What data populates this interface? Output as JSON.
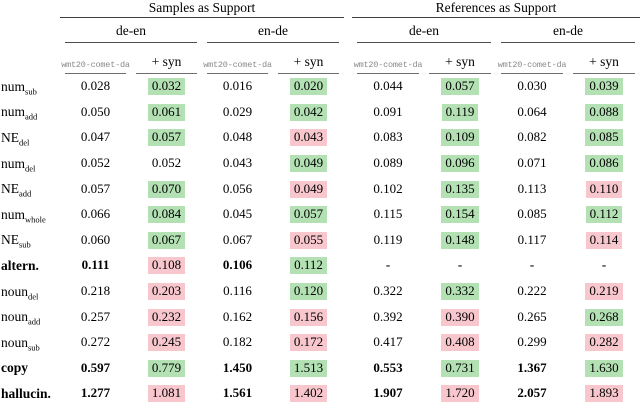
{
  "table": {
    "groups": [
      "Samples as Support",
      "References as Support"
    ],
    "lang_headers": [
      "de-en",
      "en-de",
      "de-en",
      "en-de"
    ],
    "col_headers": {
      "metric": "wmt20-comet-da",
      "syn": "+ syn"
    },
    "colors": {
      "improve_green": "#b4e1b4",
      "degrade_pink": "#f8c7cd",
      "metric_gray": "#8a8a8a"
    },
    "rows": [
      {
        "label": "num",
        "subscript": "sub",
        "bold": false,
        "values": [
          {
            "v": "0.028"
          },
          {
            "v": "0.032",
            "hl": "green"
          },
          {
            "v": "0.016"
          },
          {
            "v": "0.020",
            "hl": "green"
          },
          {
            "v": "0.044"
          },
          {
            "v": "0.057",
            "hl": "green"
          },
          {
            "v": "0.030"
          },
          {
            "v": "0.039",
            "hl": "green"
          }
        ]
      },
      {
        "label": "num",
        "subscript": "add",
        "bold": false,
        "values": [
          {
            "v": "0.050"
          },
          {
            "v": "0.061",
            "hl": "green"
          },
          {
            "v": "0.029"
          },
          {
            "v": "0.042",
            "hl": "green"
          },
          {
            "v": "0.091"
          },
          {
            "v": "0.119",
            "hl": "green"
          },
          {
            "v": "0.064"
          },
          {
            "v": "0.088",
            "hl": "green"
          }
        ]
      },
      {
        "label": "NE",
        "subscript": "del",
        "bold": false,
        "values": [
          {
            "v": "0.047"
          },
          {
            "v": "0.057",
            "hl": "green"
          },
          {
            "v": "0.048"
          },
          {
            "v": "0.043",
            "hl": "pink"
          },
          {
            "v": "0.083"
          },
          {
            "v": "0.109",
            "hl": "green"
          },
          {
            "v": "0.082"
          },
          {
            "v": "0.085",
            "hl": "green"
          }
        ]
      },
      {
        "label": "num",
        "subscript": "del",
        "bold": false,
        "values": [
          {
            "v": "0.052"
          },
          {
            "v": "0.052"
          },
          {
            "v": "0.043"
          },
          {
            "v": "0.049",
            "hl": "green"
          },
          {
            "v": "0.089"
          },
          {
            "v": "0.096",
            "hl": "green"
          },
          {
            "v": "0.071"
          },
          {
            "v": "0.086",
            "hl": "green"
          }
        ]
      },
      {
        "label": "NE",
        "subscript": "add",
        "bold": false,
        "values": [
          {
            "v": "0.057"
          },
          {
            "v": "0.070",
            "hl": "green"
          },
          {
            "v": "0.056"
          },
          {
            "v": "0.049",
            "hl": "pink"
          },
          {
            "v": "0.102"
          },
          {
            "v": "0.135",
            "hl": "green"
          },
          {
            "v": "0.113"
          },
          {
            "v": "0.110",
            "hl": "pink"
          }
        ]
      },
      {
        "label": "num",
        "subscript": "whole",
        "bold": false,
        "values": [
          {
            "v": "0.066"
          },
          {
            "v": "0.084",
            "hl": "green"
          },
          {
            "v": "0.045"
          },
          {
            "v": "0.057",
            "hl": "green"
          },
          {
            "v": "0.115"
          },
          {
            "v": "0.154",
            "hl": "green"
          },
          {
            "v": "0.085"
          },
          {
            "v": "0.112",
            "hl": "green"
          }
        ]
      },
      {
        "label": "NE",
        "subscript": "sub",
        "bold": false,
        "values": [
          {
            "v": "0.060"
          },
          {
            "v": "0.067",
            "hl": "green"
          },
          {
            "v": "0.067"
          },
          {
            "v": "0.055",
            "hl": "pink"
          },
          {
            "v": "0.119"
          },
          {
            "v": "0.148",
            "hl": "green"
          },
          {
            "v": "0.117"
          },
          {
            "v": "0.114",
            "hl": "pink"
          }
        ]
      },
      {
        "label": "altern.",
        "subscript": "",
        "bold": true,
        "values": [
          {
            "v": "0.111",
            "b": true
          },
          {
            "v": "0.108",
            "hl": "pink"
          },
          {
            "v": "0.106",
            "b": true
          },
          {
            "v": "0.112",
            "hl": "green"
          },
          {
            "v": "-",
            "b": true
          },
          {
            "v": "-",
            "b": true
          },
          {
            "v": "-",
            "b": true
          },
          {
            "v": "-",
            "b": true
          }
        ]
      },
      {
        "label": "noun",
        "subscript": "del",
        "bold": false,
        "values": [
          {
            "v": "0.218"
          },
          {
            "v": "0.203",
            "hl": "pink"
          },
          {
            "v": "0.116"
          },
          {
            "v": "0.120",
            "hl": "green"
          },
          {
            "v": "0.322"
          },
          {
            "v": "0.332",
            "hl": "green"
          },
          {
            "v": "0.222"
          },
          {
            "v": "0.219",
            "hl": "pink"
          }
        ]
      },
      {
        "label": "noun",
        "subscript": "add",
        "bold": false,
        "values": [
          {
            "v": "0.257"
          },
          {
            "v": "0.232",
            "hl": "pink"
          },
          {
            "v": "0.162"
          },
          {
            "v": "0.156",
            "hl": "pink"
          },
          {
            "v": "0.392"
          },
          {
            "v": "0.390",
            "hl": "pink"
          },
          {
            "v": "0.265"
          },
          {
            "v": "0.268",
            "hl": "green"
          }
        ]
      },
      {
        "label": "noun",
        "subscript": "sub",
        "bold": false,
        "values": [
          {
            "v": "0.272"
          },
          {
            "v": "0.245",
            "hl": "pink"
          },
          {
            "v": "0.182"
          },
          {
            "v": "0.172",
            "hl": "pink"
          },
          {
            "v": "0.417"
          },
          {
            "v": "0.408",
            "hl": "pink"
          },
          {
            "v": "0.299"
          },
          {
            "v": "0.282",
            "hl": "pink"
          }
        ]
      },
      {
        "label": "copy",
        "subscript": "",
        "bold": true,
        "values": [
          {
            "v": "0.597",
            "b": true
          },
          {
            "v": "0.779",
            "hl": "green"
          },
          {
            "v": "1.450",
            "b": true
          },
          {
            "v": "1.513",
            "hl": "green"
          },
          {
            "v": "0.553",
            "b": true
          },
          {
            "v": "0.731",
            "hl": "green"
          },
          {
            "v": "1.367",
            "b": true
          },
          {
            "v": "1.630",
            "hl": "green"
          }
        ]
      },
      {
        "label": "hallucin.",
        "subscript": "",
        "bold": true,
        "values": [
          {
            "v": "1.277",
            "b": true
          },
          {
            "v": "1.081",
            "hl": "pink"
          },
          {
            "v": "1.561",
            "b": true
          },
          {
            "v": "1.402",
            "hl": "pink"
          },
          {
            "v": "1.907",
            "b": true
          },
          {
            "v": "1.720",
            "hl": "pink"
          },
          {
            "v": "2.057",
            "b": true
          },
          {
            "v": "1.893",
            "hl": "pink"
          }
        ]
      }
    ]
  }
}
